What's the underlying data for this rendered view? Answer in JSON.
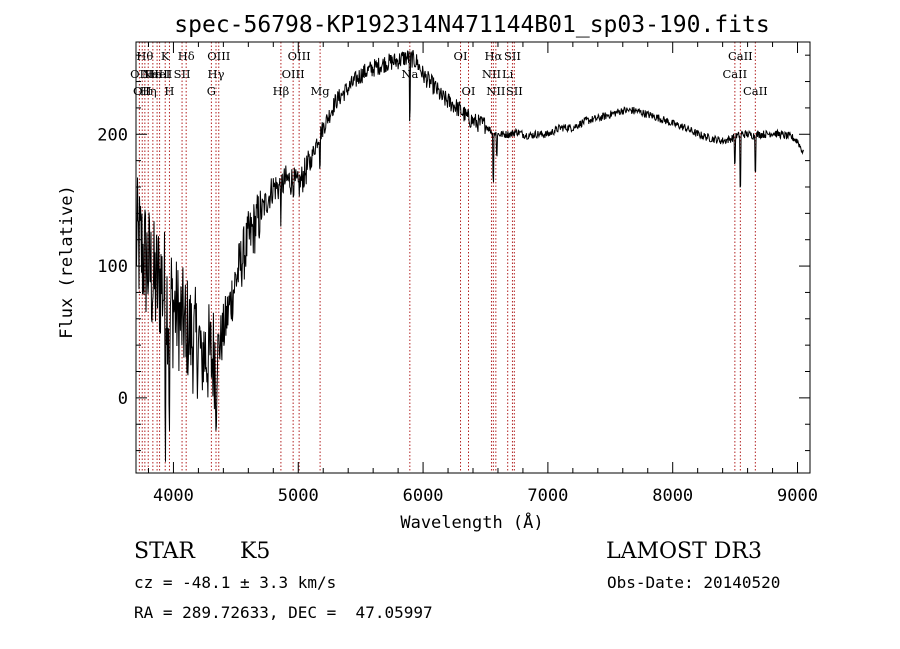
{
  "chart_data": {
    "type": "line",
    "title": "spec-56798-KP192314N471144B01_sp03-190.fits",
    "xlabel": "Wavelength (Å)",
    "ylabel": "Flux (relative)",
    "xlim": [
      3700,
      9100
    ],
    "ylim": [
      -57,
      270
    ],
    "xticks": [
      4000,
      5000,
      6000,
      7000,
      8000,
      9000
    ],
    "yticks": [
      0,
      100,
      200
    ],
    "grid": false,
    "legend": "none",
    "line_color": "#000000",
    "marker_color": "#b22222",
    "continuum": {
      "x": [
        3700,
        3750,
        3800,
        3850,
        3900,
        3950,
        4000,
        4050,
        4100,
        4150,
        4200,
        4250,
        4300,
        4350,
        4400,
        4450,
        4500,
        4550,
        4600,
        4650,
        4700,
        4750,
        4800,
        4850,
        4900,
        4950,
        5000,
        5050,
        5100,
        5150,
        5200,
        5250,
        5300,
        5350,
        5400,
        5450,
        5500,
        5550,
        5600,
        5650,
        5700,
        5750,
        5800,
        5850,
        5900,
        5950,
        6000,
        6050,
        6100,
        6150,
        6200,
        6250,
        6300,
        6350,
        6400,
        6450,
        6500,
        6550,
        6600,
        6650,
        6700,
        6750,
        6800,
        6850,
        6900,
        6950,
        7000,
        7100,
        7200,
        7300,
        7400,
        7500,
        7600,
        7700,
        7800,
        7900,
        8000,
        8100,
        8200,
        8300,
        8400,
        8450,
        8500,
        8550,
        8600,
        8650,
        8700,
        8750,
        8800,
        8850,
        8900,
        8950,
        9000,
        9050
      ],
      "y": [
        120,
        110,
        100,
        85,
        90,
        75,
        70,
        60,
        55,
        45,
        40,
        35,
        30,
        35,
        50,
        70,
        90,
        105,
        120,
        130,
        140,
        150,
        160,
        160,
        165,
        165,
        160,
        170,
        180,
        195,
        205,
        215,
        225,
        230,
        235,
        240,
        245,
        248,
        250,
        252,
        254,
        255,
        256,
        258,
        258,
        255,
        245,
        240,
        235,
        228,
        225,
        222,
        218,
        213,
        210,
        208,
        207,
        202,
        200,
        200,
        200,
        202,
        200,
        199,
        200,
        200,
        200,
        205,
        205,
        210,
        212,
        215,
        218,
        218,
        215,
        212,
        208,
        205,
        200,
        197,
        195,
        196,
        198,
        200,
        200,
        199,
        200,
        200,
        201,
        200,
        199,
        198,
        195,
        185
      ]
    },
    "noise": [
      {
        "from": 3700,
        "to": 4000,
        "amp": 50
      },
      {
        "from": 4000,
        "to": 4350,
        "amp": 42
      },
      {
        "from": 4350,
        "to": 4700,
        "amp": 22
      },
      {
        "from": 4700,
        "to": 5100,
        "amp": 12
      },
      {
        "from": 5100,
        "to": 6500,
        "amp": 7
      },
      {
        "from": 6500,
        "to": 9100,
        "amp": 3
      }
    ],
    "absorption": [
      {
        "x": 3933,
        "depth": 80
      },
      {
        "x": 3968,
        "depth": 70
      },
      {
        "x": 4102,
        "depth": 30
      },
      {
        "x": 4227,
        "depth": 30
      },
      {
        "x": 4340,
        "depth": 25
      },
      {
        "x": 4861,
        "depth": 20
      },
      {
        "x": 5175,
        "depth": 20
      },
      {
        "x": 5893,
        "depth": 45
      },
      {
        "x": 6563,
        "depth": 35
      },
      {
        "x": 6590,
        "depth": 15
      },
      {
        "x": 8498,
        "depth": 20
      },
      {
        "x": 8542,
        "depth": 40
      },
      {
        "x": 8662,
        "depth": 25
      }
    ],
    "lines": [
      {
        "x": 3727,
        "label": "OII",
        "row": 1
      },
      {
        "x": 3750,
        "label": "OII",
        "row": 2
      },
      {
        "x": 3771,
        "label": "Hθ",
        "row": 0
      },
      {
        "x": 3798,
        "label": "Hη",
        "row": 2
      },
      {
        "x": 3835,
        "label": "Hε",
        "row": 1
      },
      {
        "x": 3869,
        "label": "NeIII",
        "row": 1
      },
      {
        "x": 3889,
        "label": "HeI",
        "row": 1
      },
      {
        "x": 3934,
        "label": "K",
        "row": 0
      },
      {
        "x": 3968,
        "label": "H",
        "row": 2
      },
      {
        "x": 4069,
        "label": "SII",
        "row": 1
      },
      {
        "x": 4102,
        "label": "Hδ",
        "row": 0
      },
      {
        "x": 4304,
        "label": "G",
        "row": 2
      },
      {
        "x": 4341,
        "label": "Hγ",
        "row": 1
      },
      {
        "x": 4363,
        "label": "OIII",
        "row": 0
      },
      {
        "x": 4861,
        "label": "Hβ",
        "row": 2
      },
      {
        "x": 4959,
        "label": "OIII",
        "row": 1
      },
      {
        "x": 5007,
        "label": "OIII",
        "row": 0
      },
      {
        "x": 5175,
        "label": "Mg",
        "row": 2
      },
      {
        "x": 5894,
        "label": "Na",
        "row": 1
      },
      {
        "x": 6300,
        "label": "OI",
        "row": 0
      },
      {
        "x": 6364,
        "label": "OI",
        "row": 2
      },
      {
        "x": 6548,
        "label": "NII",
        "row": 1
      },
      {
        "x": 6563,
        "label": "Hα",
        "row": 0
      },
      {
        "x": 6583,
        "label": "NII",
        "row": 2
      },
      {
        "x": 6678,
        "label": "Li",
        "row": 1
      },
      {
        "x": 6716,
        "label": "SII",
        "row": 0
      },
      {
        "x": 6731,
        "label": "SII",
        "row": 2
      },
      {
        "x": 8498,
        "label": "CaII",
        "row": 1
      },
      {
        "x": 8542,
        "label": "CaII",
        "row": 0
      },
      {
        "x": 8662,
        "label": "CaII",
        "row": 2
      }
    ]
  },
  "info": {
    "class": "STAR",
    "subclass": "K5",
    "redshift": "cz = -48.1 ± 3.3 km/s",
    "coords": "RA = 289.72633, DEC =  47.05997",
    "survey": "LAMOST DR3",
    "obs_date": "Obs-Date: 20140520"
  }
}
